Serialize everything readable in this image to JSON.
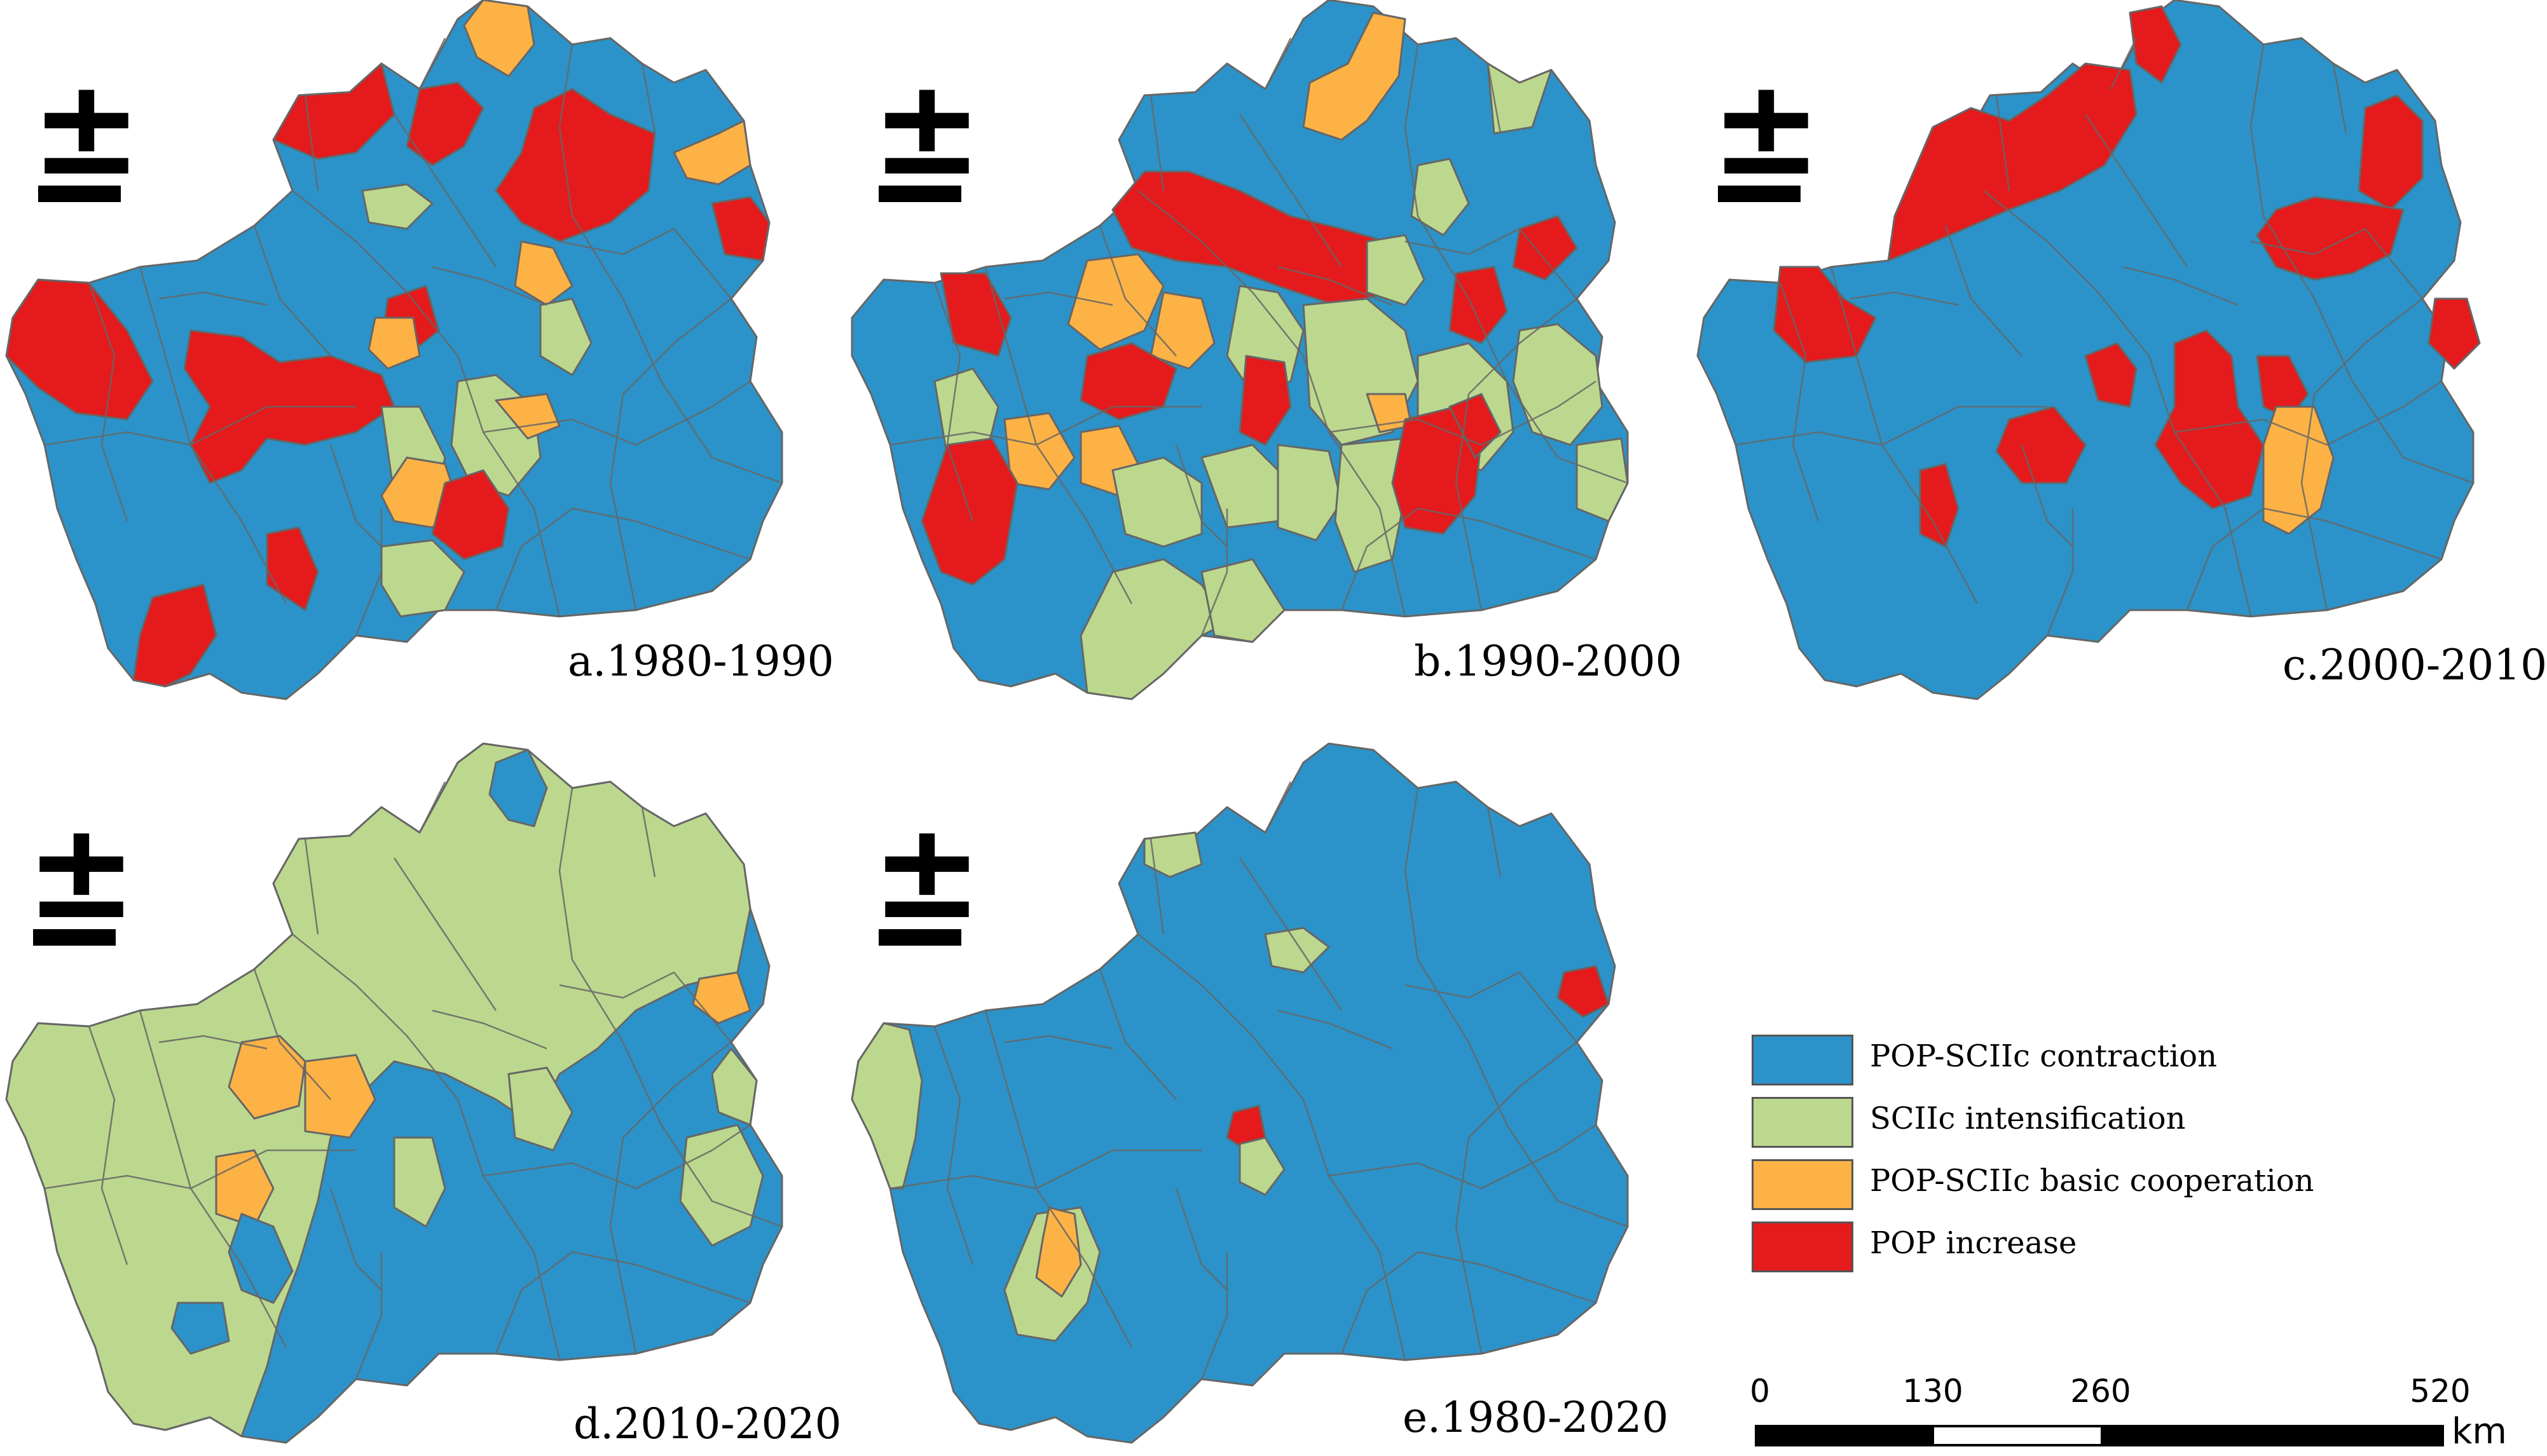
{
  "colors": {
    "contraction": "#2b93c9",
    "intensification": "#bcd88e",
    "cooperation": "#fdb245",
    "increase": "#e41a1c",
    "border": "#666666"
  },
  "north_arrow": {
    "symbol": "±"
  },
  "panels": [
    {
      "id": "a",
      "label": "a.1980-1990"
    },
    {
      "id": "b",
      "label": "b.1990-2000"
    },
    {
      "id": "c",
      "label": "c.2000-2010"
    },
    {
      "id": "d",
      "label": "d.2010-2020"
    },
    {
      "id": "e",
      "label": "e.1980-2020"
    }
  ],
  "legend": {
    "items": [
      {
        "key": "contraction",
        "label": "POP-SCIIc contraction"
      },
      {
        "key": "intensification",
        "label": "SCIIc intensification"
      },
      {
        "key": "cooperation",
        "label": "POP-SCIIc basic cooperation"
      },
      {
        "key": "increase",
        "label": "POP increase"
      }
    ]
  },
  "scale_bar": {
    "ticks": [
      "0",
      "130",
      "260",
      "520"
    ],
    "unit": "km"
  }
}
